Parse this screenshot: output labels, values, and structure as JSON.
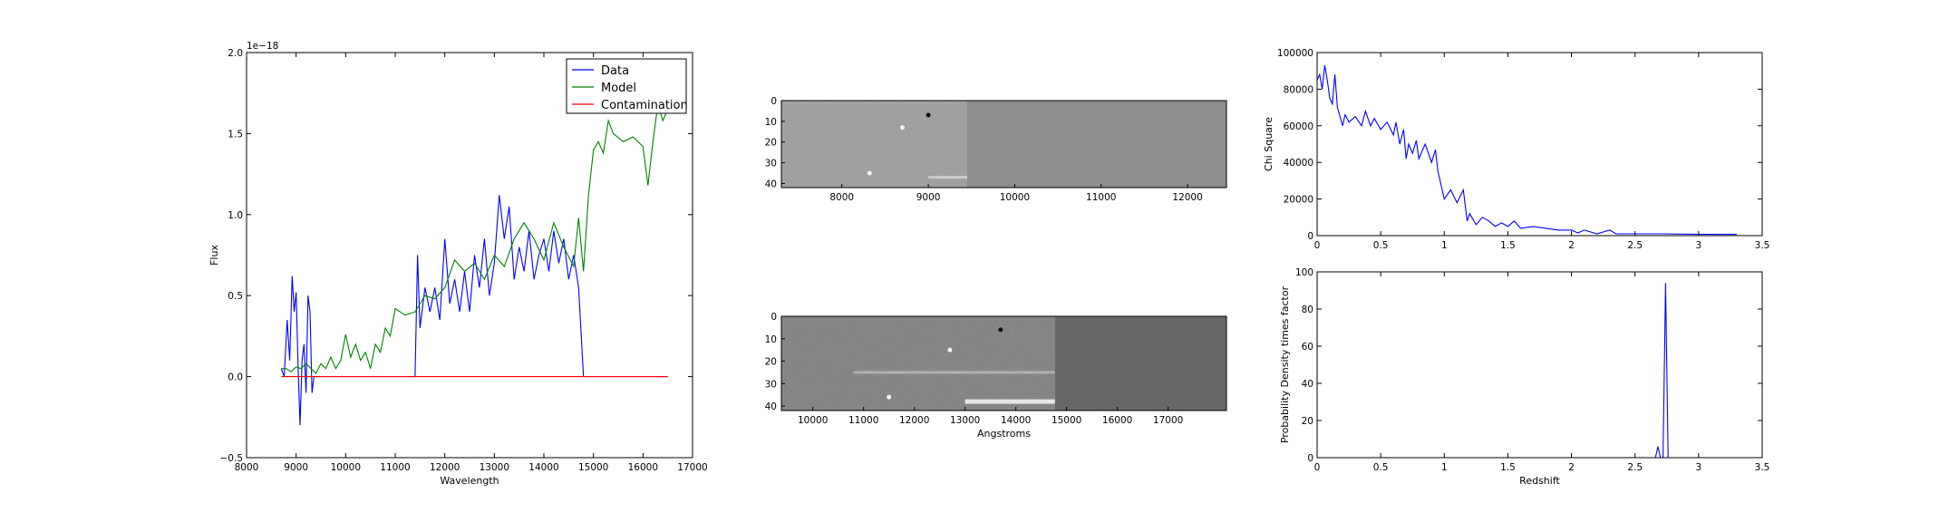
{
  "chart_data": [
    {
      "type": "line",
      "xlabel": "Wavelength",
      "ylabel": "Flux",
      "offset_text": "1e−18",
      "xlim": [
        8000,
        17000
      ],
      "ylim": [
        -0.5,
        2.0
      ],
      "x_ticks": [
        8000,
        9000,
        10000,
        11000,
        12000,
        13000,
        14000,
        15000,
        16000,
        17000
      ],
      "y_ticks": [
        -0.5,
        0.0,
        0.5,
        1.0,
        1.5,
        2.0
      ],
      "y_tick_labels": [
        "−0.5",
        "0.0",
        "0.5",
        "1.0",
        "1.5",
        "2.0"
      ],
      "legend_position": "top-right",
      "series": [
        {
          "name": "Data",
          "color": "#0000ff",
          "points": [
            [
              8700,
              0.05
            ],
            [
              8760,
              0.0
            ],
            [
              8820,
              0.35
            ],
            [
              8870,
              0.1
            ],
            [
              8920,
              0.62
            ],
            [
              8960,
              0.4
            ],
            [
              9000,
              0.52
            ],
            [
              9040,
              0.05
            ],
            [
              9080,
              -0.3
            ],
            [
              9120,
              0.1
            ],
            [
              9160,
              0.2
            ],
            [
              9200,
              -0.1
            ],
            [
              9240,
              0.5
            ],
            [
              9280,
              0.4
            ],
            [
              9320,
              -0.1
            ],
            [
              9360,
              0.0
            ],
            [
              11000,
              0.0
            ],
            [
              11400,
              0.0
            ],
            [
              11450,
              0.75
            ],
            [
              11500,
              0.3
            ],
            [
              11600,
              0.55
            ],
            [
              11700,
              0.4
            ],
            [
              11800,
              0.55
            ],
            [
              11900,
              0.35
            ],
            [
              12000,
              0.85
            ],
            [
              12100,
              0.45
            ],
            [
              12200,
              0.6
            ],
            [
              12300,
              0.4
            ],
            [
              12400,
              0.65
            ],
            [
              12500,
              0.4
            ],
            [
              12600,
              0.75
            ],
            [
              12700,
              0.55
            ],
            [
              12800,
              0.85
            ],
            [
              12900,
              0.5
            ],
            [
              13000,
              0.7
            ],
            [
              13100,
              1.12
            ],
            [
              13200,
              0.85
            ],
            [
              13300,
              1.05
            ],
            [
              13400,
              0.6
            ],
            [
              13500,
              0.8
            ],
            [
              13600,
              0.65
            ],
            [
              13700,
              0.9
            ],
            [
              13800,
              0.6
            ],
            [
              13900,
              0.75
            ],
            [
              14000,
              0.85
            ],
            [
              14100,
              0.65
            ],
            [
              14200,
              0.9
            ],
            [
              14300,
              0.7
            ],
            [
              14400,
              0.85
            ],
            [
              14500,
              0.6
            ],
            [
              14600,
              0.75
            ],
            [
              14700,
              0.55
            ],
            [
              14800,
              0.0
            ],
            [
              16500,
              0.0
            ]
          ]
        },
        {
          "name": "Model",
          "color": "#008000",
          "points": [
            [
              8700,
              0.05
            ],
            [
              8800,
              0.05
            ],
            [
              8900,
              0.03
            ],
            [
              9000,
              0.06
            ],
            [
              9100,
              0.05
            ],
            [
              9200,
              0.08
            ],
            [
              9300,
              0.05
            ],
            [
              9400,
              0.02
            ],
            [
              9500,
              0.08
            ],
            [
              9600,
              0.05
            ],
            [
              9700,
              0.12
            ],
            [
              9800,
              0.05
            ],
            [
              9900,
              0.1
            ],
            [
              10000,
              0.26
            ],
            [
              10100,
              0.12
            ],
            [
              10200,
              0.2
            ],
            [
              10300,
              0.1
            ],
            [
              10400,
              0.15
            ],
            [
              10500,
              0.05
            ],
            [
              10600,
              0.2
            ],
            [
              10700,
              0.15
            ],
            [
              10800,
              0.3
            ],
            [
              10900,
              0.25
            ],
            [
              11000,
              0.42
            ],
            [
              11200,
              0.38
            ],
            [
              11400,
              0.4
            ],
            [
              11600,
              0.5
            ],
            [
              11800,
              0.48
            ],
            [
              12000,
              0.55
            ],
            [
              12200,
              0.72
            ],
            [
              12400,
              0.65
            ],
            [
              12600,
              0.7
            ],
            [
              12800,
              0.6
            ],
            [
              13000,
              0.75
            ],
            [
              13200,
              0.68
            ],
            [
              13400,
              0.85
            ],
            [
              13600,
              0.95
            ],
            [
              13800,
              0.85
            ],
            [
              14000,
              0.72
            ],
            [
              14200,
              0.95
            ],
            [
              14400,
              0.8
            ],
            [
              14600,
              0.68
            ],
            [
              14700,
              0.98
            ],
            [
              14800,
              0.65
            ],
            [
              14900,
              1.12
            ],
            [
              15000,
              1.4
            ],
            [
              15100,
              1.45
            ],
            [
              15200,
              1.38
            ],
            [
              15300,
              1.58
            ],
            [
              15400,
              1.5
            ],
            [
              15600,
              1.45
            ],
            [
              15800,
              1.48
            ],
            [
              16000,
              1.42
            ],
            [
              16100,
              1.18
            ],
            [
              16200,
              1.45
            ],
            [
              16300,
              1.68
            ],
            [
              16400,
              1.58
            ],
            [
              16500,
              1.65
            ]
          ]
        },
        {
          "name": "Contamination",
          "color": "#ff0000",
          "points": [
            [
              8700,
              0.0
            ],
            [
              16500,
              0.0
            ]
          ]
        }
      ]
    },
    {
      "type": "heatmap",
      "xlim": [
        7300,
        12450
      ],
      "ylim": [
        42,
        0
      ],
      "x_ticks": [
        8000,
        9000,
        10000,
        11000,
        12000
      ],
      "y_ticks": [
        0,
        10,
        20,
        30,
        40
      ],
      "data_end_x": 9450,
      "features": [
        {
          "x": 8700,
          "y": 13,
          "tone": "light"
        },
        {
          "x": 8320,
          "y": 35,
          "tone": "light"
        },
        {
          "x": 9000,
          "y": 7,
          "tone": "dark"
        }
      ],
      "trace": {
        "x_from": 9000,
        "x_to": 9450,
        "y": 37
      }
    },
    {
      "type": "heatmap",
      "xlabel": "Angstroms",
      "xlim": [
        9380,
        18150
      ],
      "ylim": [
        42,
        0
      ],
      "x_ticks": [
        10000,
        11000,
        12000,
        13000,
        14000,
        15000,
        16000,
        17000
      ],
      "y_ticks": [
        0,
        10,
        20,
        30,
        40
      ],
      "data_end_x": 14770,
      "features": [
        {
          "x": 13700,
          "y": 6,
          "tone": "dark"
        },
        {
          "x": 12700,
          "y": 15,
          "tone": "light"
        },
        {
          "x": 11500,
          "y": 36,
          "tone": "light"
        }
      ],
      "traces": [
        {
          "x_from": 10800,
          "x_to": 14770,
          "y": 25,
          "strength": "faint"
        },
        {
          "x_from": 13000,
          "x_to": 14770,
          "y": 38,
          "strength": "bright"
        }
      ]
    },
    {
      "type": "line",
      "ylabel": "Chi Square",
      "xlim": [
        0,
        3.5
      ],
      "ylim": [
        0,
        100000
      ],
      "x_ticks": [
        0.0,
        0.5,
        1.0,
        1.5,
        2.0,
        2.5,
        3.0,
        3.5
      ],
      "y_ticks": [
        0,
        20000,
        40000,
        60000,
        80000,
        100000
      ],
      "series": [
        {
          "color": "#0000ff",
          "points": [
            [
              0,
              85000
            ],
            [
              0.02,
              88000
            ],
            [
              0.04,
              80000
            ],
            [
              0.06,
              93000
            ],
            [
              0.08,
              85000
            ],
            [
              0.1,
              75000
            ],
            [
              0.12,
              72000
            ],
            [
              0.14,
              88000
            ],
            [
              0.16,
              70000
            ],
            [
              0.18,
              65000
            ],
            [
              0.2,
              60000
            ],
            [
              0.22,
              66000
            ],
            [
              0.25,
              62000
            ],
            [
              0.3,
              65000
            ],
            [
              0.35,
              60000
            ],
            [
              0.38,
              68000
            ],
            [
              0.42,
              60000
            ],
            [
              0.45,
              64000
            ],
            [
              0.5,
              58000
            ],
            [
              0.55,
              62000
            ],
            [
              0.6,
              55000
            ],
            [
              0.62,
              62000
            ],
            [
              0.65,
              50000
            ],
            [
              0.68,
              58000
            ],
            [
              0.7,
              42000
            ],
            [
              0.72,
              50000
            ],
            [
              0.75,
              45000
            ],
            [
              0.78,
              52000
            ],
            [
              0.8,
              42000
            ],
            [
              0.85,
              50000
            ],
            [
              0.9,
              40000
            ],
            [
              0.93,
              47000
            ],
            [
              0.95,
              35000
            ],
            [
              1.0,
              20000
            ],
            [
              1.05,
              25000
            ],
            [
              1.1,
              18000
            ],
            [
              1.15,
              25000
            ],
            [
              1.18,
              8000
            ],
            [
              1.2,
              12000
            ],
            [
              1.25,
              6000
            ],
            [
              1.3,
              10000
            ],
            [
              1.35,
              8000
            ],
            [
              1.4,
              5000
            ],
            [
              1.45,
              7000
            ],
            [
              1.5,
              5000
            ],
            [
              1.55,
              8000
            ],
            [
              1.6,
              4000
            ],
            [
              1.7,
              5000
            ],
            [
              1.8,
              4000
            ],
            [
              1.9,
              3000
            ],
            [
              2.0,
              3000
            ],
            [
              2.05,
              1500
            ],
            [
              2.1,
              3000
            ],
            [
              2.2,
              1000
            ],
            [
              2.3,
              3000
            ],
            [
              2.35,
              1000
            ],
            [
              2.5,
              1000
            ],
            [
              2.7,
              1000
            ],
            [
              3.0,
              700
            ],
            [
              3.3,
              700
            ]
          ]
        }
      ]
    },
    {
      "type": "line",
      "xlabel": "Redshift",
      "ylabel": "Probability Density times factor",
      "xlim": [
        0,
        3.5
      ],
      "ylim": [
        0,
        100
      ],
      "x_ticks": [
        0.0,
        0.5,
        1.0,
        1.5,
        2.0,
        2.5,
        3.0,
        3.5
      ],
      "y_ticks": [
        0,
        20,
        40,
        60,
        80,
        100
      ],
      "series": [
        {
          "color": "#0000ff",
          "points": [
            [
              0,
              0
            ],
            [
              2.66,
              0
            ],
            [
              2.68,
              6
            ],
            [
              2.7,
              0
            ],
            [
              2.72,
              0
            ],
            [
              2.74,
              94
            ],
            [
              2.76,
              0
            ],
            [
              3.3,
              0
            ]
          ]
        }
      ]
    }
  ]
}
